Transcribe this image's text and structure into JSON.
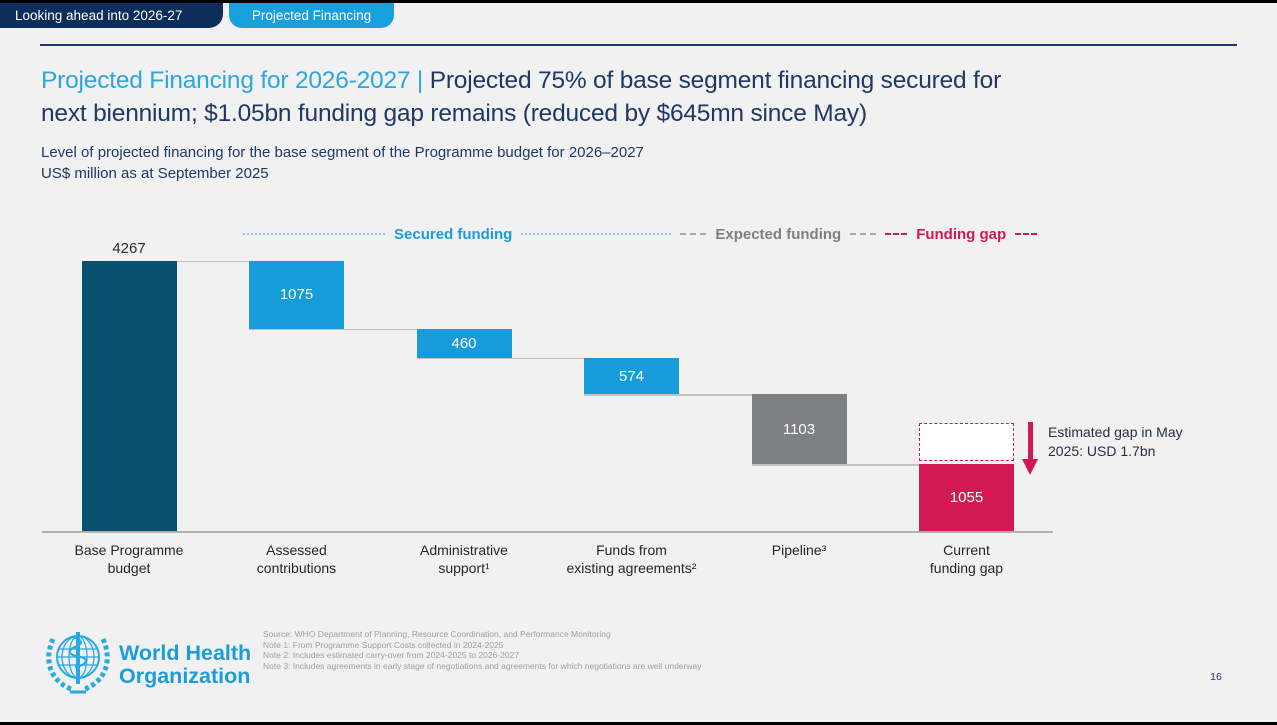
{
  "header": {
    "tab1": "Looking ahead into 2026-27",
    "tab2": "Projected Financing"
  },
  "title": {
    "highlight": "Projected Financing for 2026-2027 | ",
    "rest": "Projected 75% of base segment financing secured for\nnext biennium; $1.05bn funding gap remains (reduced by $645mn since May)"
  },
  "subtitle": {
    "line1": "Level of projected financing for the base segment of the Programme budget for 2026–2027",
    "line2": "US$ million as at September 2025"
  },
  "chart_data": {
    "type": "bar",
    "subtype": "waterfall",
    "title": "Level of projected financing for the base segment of the Programme budget for 2026–2027",
    "unit": "US$ million as at September 2025",
    "categories": [
      "Base Programme\nbudget",
      "Assessed\ncontributions",
      "Administrative\nsupport¹",
      "Funds from\nexisting agreements²",
      "Pipeline³",
      "Current\nfunding gap"
    ],
    "values": [
      4267,
      1075,
      460,
      574,
      1103,
      1055
    ],
    "segments": [
      "total",
      "secured",
      "secured",
      "secured",
      "expected",
      "gap"
    ],
    "legend": [
      "Secured funding",
      "Expected funding",
      "Funding gap"
    ],
    "legend_position": "top",
    "grid": false,
    "ylim": [
      0,
      4267
    ],
    "colors": {
      "total": "#07506f",
      "secured": "#189cd9",
      "expected": "#7f8083",
      "gap": "#d21955"
    },
    "dashed_remainder_value": 645,
    "dashed_remainder_meaning": "reduction of gap since May (1700 - 1055)"
  },
  "annotation": {
    "text": "Estimated gap in May\n2025: USD 1.7bn"
  },
  "footer": {
    "org_line1": "World Health",
    "org_line2": "Organization",
    "notes": [
      "Source: WHO Department of Planning, Resource Coordination, and Performance Monitoring",
      "Note 1: From Programme Support Costs collected in 2024-2025",
      "Note 2: Includes estimated carry-over from 2024-2025 to 2026-2027",
      "Note 3: Includes agreements in early stage of negotiations and agreements for which negotiations are well underway"
    ],
    "page_number": "16"
  }
}
